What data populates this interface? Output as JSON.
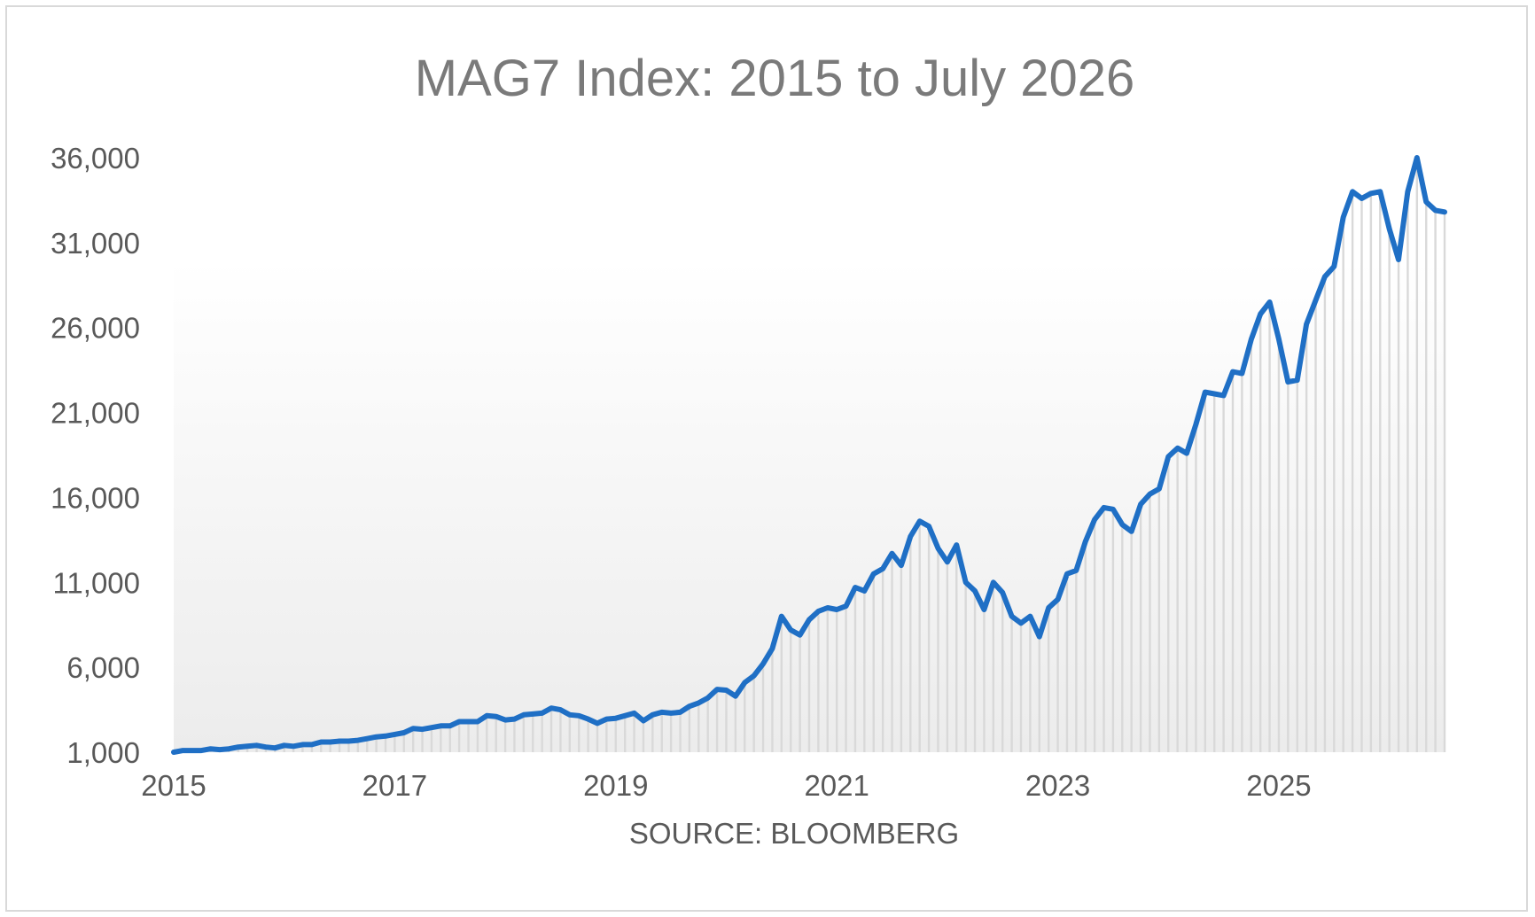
{
  "chart_data": {
    "type": "area",
    "title": "MAG7 Index: 2015 to July 2026",
    "xlabel": "SOURCE: BLOOMBERG",
    "ylabel": "",
    "ylim": [
      1000,
      36000
    ],
    "xlim": [
      "2015-01",
      "2026-07"
    ],
    "yticks": [
      "1,000",
      "6,000",
      "11,000",
      "16,000",
      "21,000",
      "26,000",
      "31,000",
      "36,000"
    ],
    "xticks": [
      "2015",
      "2017",
      "2019",
      "2021",
      "2023",
      "2025"
    ],
    "legend": "none",
    "grid": false,
    "line_color": "#1f6fc5",
    "fill_color": "#d9d9d9",
    "series": [
      {
        "x": [
          "2015-01",
          "2015-02",
          "2015-03",
          "2015-04",
          "2015-05",
          "2015-06",
          "2015-07",
          "2015-08",
          "2015-09",
          "2015-10",
          "2015-11",
          "2015-12",
          "2016-01",
          "2016-02",
          "2016-03",
          "2016-04",
          "2016-05",
          "2016-06",
          "2016-07",
          "2016-08",
          "2016-09",
          "2016-10",
          "2016-11",
          "2016-12",
          "2017-01",
          "2017-02",
          "2017-03",
          "2017-04",
          "2017-05",
          "2017-06",
          "2017-07",
          "2017-08",
          "2017-09",
          "2017-10",
          "2017-11",
          "2017-12",
          "2018-01",
          "2018-02",
          "2018-03",
          "2018-04",
          "2018-05",
          "2018-06",
          "2018-07",
          "2018-08",
          "2018-09",
          "2018-10",
          "2018-11",
          "2018-12",
          "2019-01",
          "2019-02",
          "2019-03",
          "2019-04",
          "2019-05",
          "2019-06",
          "2019-07",
          "2019-08",
          "2019-09",
          "2019-10",
          "2019-11",
          "2019-12",
          "2020-01",
          "2020-02",
          "2020-03",
          "2020-04",
          "2020-05",
          "2020-06",
          "2020-07",
          "2020-08",
          "2020-09",
          "2020-10",
          "2020-11",
          "2020-12",
          "2021-01",
          "2021-02",
          "2021-03",
          "2021-04",
          "2021-05",
          "2021-06",
          "2021-07",
          "2021-08",
          "2021-09",
          "2021-10",
          "2021-11",
          "2021-12",
          "2022-01",
          "2022-02",
          "2022-03",
          "2022-04",
          "2022-05",
          "2022-06",
          "2022-07",
          "2022-08",
          "2022-09",
          "2022-10",
          "2022-11",
          "2022-12",
          "2023-01",
          "2023-02",
          "2023-03",
          "2023-04",
          "2023-05",
          "2023-06",
          "2023-07",
          "2023-08",
          "2023-09",
          "2023-10",
          "2023-11",
          "2023-12",
          "2024-01",
          "2024-02",
          "2024-03",
          "2024-04",
          "2024-05",
          "2024-06",
          "2024-07",
          "2024-08",
          "2024-09",
          "2024-10",
          "2024-11",
          "2024-12",
          "2025-01",
          "2025-02",
          "2025-03",
          "2025-04",
          "2025-05",
          "2025-06",
          "2025-07",
          "2025-08",
          "2025-09",
          "2025-10",
          "2025-11",
          "2025-12",
          "2026-01",
          "2026-02",
          "2026-03",
          "2026-04",
          "2026-05",
          "2026-06",
          "2026-07"
        ],
        "values": [
          1000,
          1100,
          1100,
          1100,
          1200,
          1150,
          1200,
          1300,
          1350,
          1400,
          1300,
          1250,
          1400,
          1350,
          1450,
          1450,
          1600,
          1600,
          1650,
          1650,
          1700,
          1800,
          1900,
          1950,
          2050,
          2150,
          2400,
          2350,
          2450,
          2550,
          2550,
          2800,
          2800,
          2800,
          3150,
          3100,
          2900,
          2950,
          3200,
          3250,
          3300,
          3600,
          3500,
          3200,
          3150,
          2950,
          2700,
          2950,
          3000,
          3150,
          3300,
          2850,
          3200,
          3350,
          3300,
          3350,
          3700,
          3900,
          4200,
          4700,
          4650,
          4300,
          5100,
          5500,
          6200,
          7100,
          9000,
          8200,
          7900,
          8800,
          9300,
          9500,
          9400,
          9600,
          10700,
          10500,
          11500,
          11800,
          12700,
          12000,
          13700,
          14600,
          14300,
          13000,
          12200,
          13200,
          11000,
          10500,
          9400,
          11000,
          10400,
          9000,
          8600,
          9000,
          7800,
          9500,
          10000,
          11500,
          11700,
          13400,
          14700,
          15400,
          15300,
          14400,
          14000,
          15600,
          16200,
          16500,
          18400,
          18900,
          18600,
          20300,
          22200,
          22100,
          22000,
          23400,
          23300,
          25300,
          26800,
          27500,
          25300,
          22800,
          22900,
          26200,
          27600,
          29000,
          29600,
          32500,
          34000,
          33600,
          33900,
          34000,
          31800,
          30000,
          34000,
          36000,
          33400,
          32900,
          32800
        ]
      }
    ]
  }
}
